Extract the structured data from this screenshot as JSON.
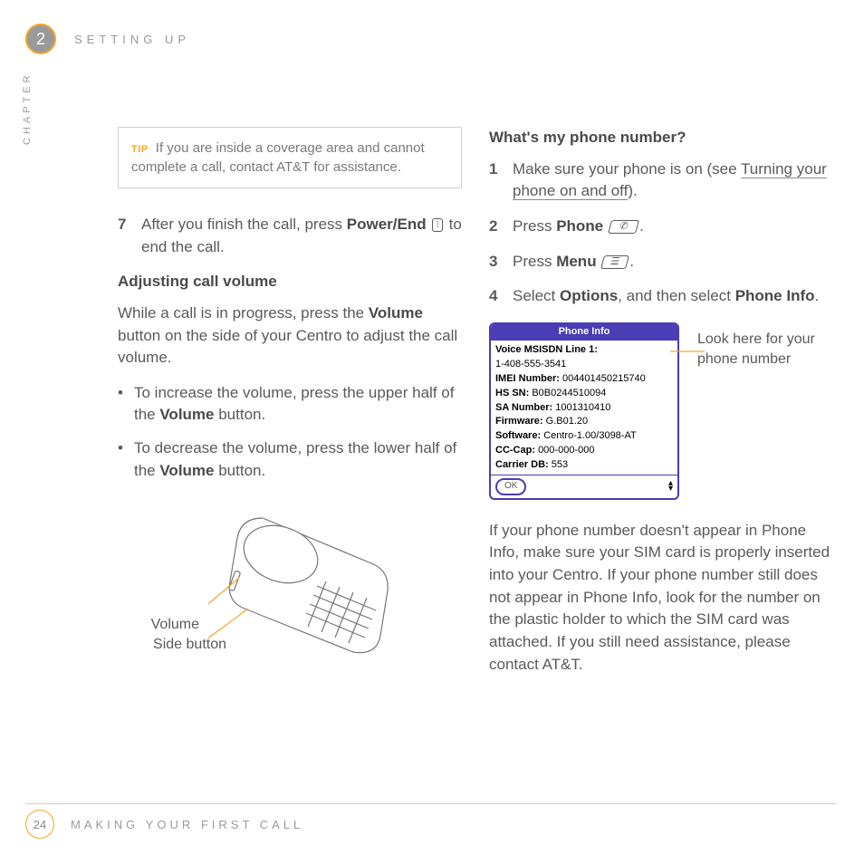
{
  "header": {
    "chapter_number": "2",
    "section_title": "SETTING UP",
    "chapter_side_label": "CHAPTER"
  },
  "left_column": {
    "tip": {
      "label": "TIP",
      "text": "If you are inside a coverage area and cannot complete a call, contact AT&T for assistance."
    },
    "step7": {
      "num": "7",
      "pre": "After you finish the call, press ",
      "bold1": "Power/End",
      "post": " to end the call."
    },
    "subhead_volume": "Adjusting call volume",
    "volume_intro_pre": "While a call is in progress, press the ",
    "volume_intro_bold": "Volume",
    "volume_intro_post": " button on the side of your Centro to adjust the call volume.",
    "bullet1_pre": "To increase the volume, press the upper half of the ",
    "bullet1_bold": "Volume",
    "bullet1_post": " button.",
    "bullet2_pre": "To decrease the volume, press the lower half of the ",
    "bullet2_bold": "Volume",
    "bullet2_post": " button.",
    "callout_volume": "Volume",
    "callout_side": "Side button"
  },
  "right_column": {
    "subhead_number": "What's my phone number?",
    "step1": {
      "num": "1",
      "pre": "Make sure your phone is on (see ",
      "link": "Turning your phone on and off",
      "post": ")."
    },
    "step2": {
      "num": "2",
      "pre": "Press ",
      "bold": "Phone",
      "post": "."
    },
    "step3": {
      "num": "3",
      "pre": "Press ",
      "bold": "Menu",
      "post": "."
    },
    "step4": {
      "num": "4",
      "pre": "Select ",
      "bold1": "Options",
      "mid": ", and then select ",
      "bold2": "Phone Info",
      "post": "."
    },
    "phoneinfo": {
      "title": "Phone Info",
      "rows": [
        {
          "label": "Voice MSISDN Line 1:",
          "value": ""
        },
        {
          "label": "",
          "value": "1-408-555-3541"
        },
        {
          "label": "IMEI Number:",
          "value": "004401450215740"
        },
        {
          "label": "HS SN:",
          "value": "B0B0244510094"
        },
        {
          "label": "SA Number:",
          "value": "1001310410"
        },
        {
          "label": "Firmware:",
          "value": "G.B01.20"
        },
        {
          "label": "Software:",
          "value": "Centro-1.00/3098-AT"
        },
        {
          "label": "CC-Cap:",
          "value": "000-000-000"
        },
        {
          "label": "Carrier DB:",
          "value": "553"
        }
      ],
      "ok": "OK"
    },
    "lookhere": "Look here for your phone number",
    "closing": "If your phone number doesn't appear in Phone Info, make sure your SIM card is properly inserted into your Centro. If your phone number still does not appear in Phone Info, look for the number on the plastic holder to which the SIM card was attached. If you still need assistance, please contact AT&T."
  },
  "footer": {
    "page_number": "24",
    "title": "MAKING YOUR FIRST CALL"
  }
}
